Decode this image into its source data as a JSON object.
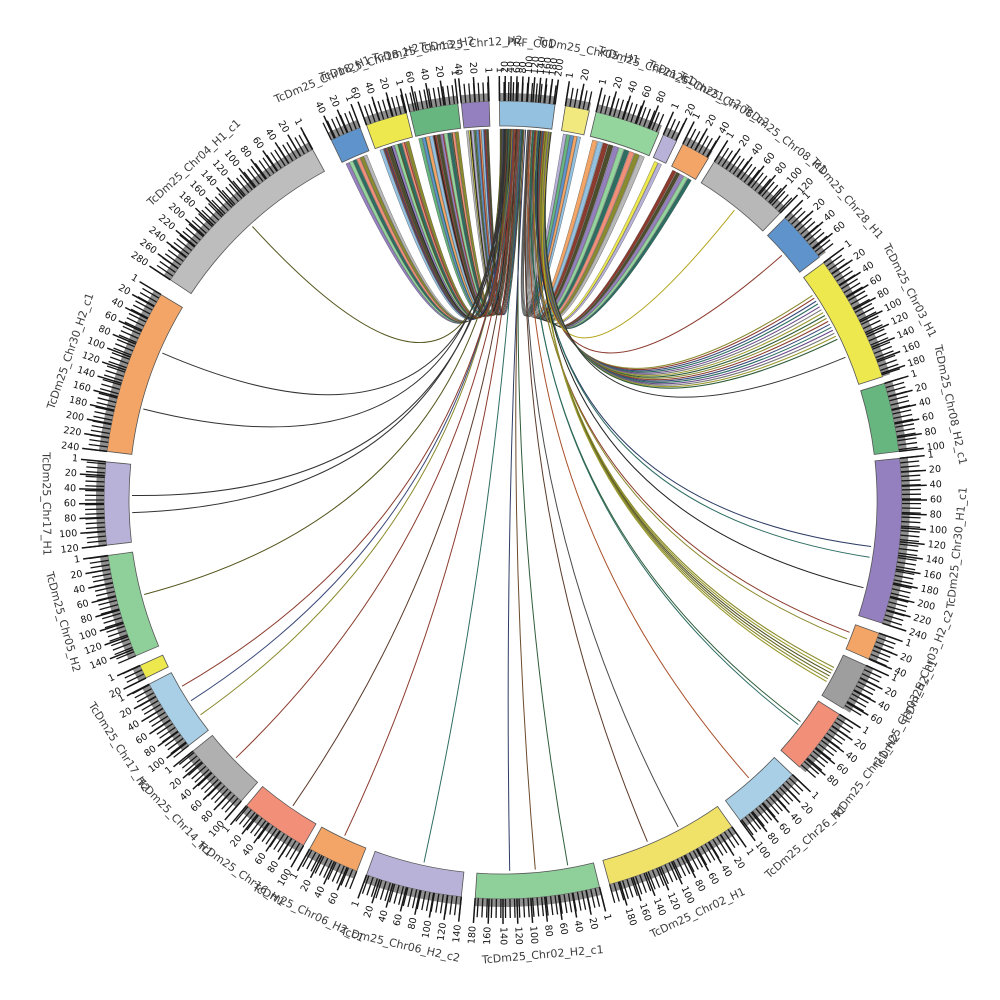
{
  "figure": {
    "background": "#ffffff",
    "description": "Circular synteny (circos-style) plot: reference sector PRF_C01 at top linked by ribbons and curves to TcDm25 chromosome haplotype sectors"
  },
  "chart_data": {
    "type": "chord",
    "reference_sector": "PRF_C01",
    "axis": {
      "minor_tick_step_deg": 0.65,
      "major_tick_step_deg": 2.0,
      "units_per_major": 20,
      "first_tick_label": "1",
      "hub_major_step_deg": 0.8
    },
    "styles": {
      "rim_color": "#8f8f8f",
      "tick_color": "#161616",
      "outline_color": "#555555",
      "name_color": "#3d3d3d",
      "tick_label_color": "#111111",
      "ribbon_outline": "rgba(35,35,35,0.55)"
    },
    "ribbon_palette": [
      "#b8b8b8",
      "#ece84e",
      "#b9b2d8",
      "#67b57f",
      "#5f93cb",
      "#f2a567",
      "#94c1e0",
      "#8c3b2e",
      "#4d4d2e",
      "#9480bf",
      "#93d59c",
      "#2e6e62",
      "#f28f79",
      "#8a8a2e"
    ],
    "sectors": [
      {
        "id": "hub",
        "label": "PRF_C01",
        "start": -0.5,
        "end": 7.5,
        "color": "#94c1e0",
        "dense": true
      },
      {
        "id": "s2",
        "label": "TcDm25_Chr05_H1",
        "start": 9,
        "end": 12.5,
        "color": "#f2e97e"
      },
      {
        "id": "s3",
        "label": "TcDm25_Chr21_c1",
        "start": 13.5,
        "end": 23,
        "color": "#93d59c"
      },
      {
        "id": "s4",
        "label": "TcDm25_Chr21_c2",
        "start": 23.7,
        "end": 25.8,
        "color": "#b9b2d8"
      },
      {
        "id": "s5",
        "label": "TcDm25_Chr08_c2",
        "start": 26.8,
        "end": 31,
        "color": "#f2a567"
      },
      {
        "id": "s6",
        "label": "TcDm25_Chr08_H1",
        "start": 32,
        "end": 44,
        "color": "#b8b8b8"
      },
      {
        "id": "s7",
        "label": "TcDm25_Chr28_H1",
        "start": 45,
        "end": 52.5,
        "color": "#5f93cb"
      },
      {
        "id": "s8",
        "label": "TcDm25_Chr03_H1",
        "start": 53.5,
        "end": 72,
        "color": "#ece84e"
      },
      {
        "id": "s9",
        "label": "TcDm25_Chr08_H2_c1",
        "start": 73,
        "end": 83,
        "color": "#67b57f"
      },
      {
        "id": "s10",
        "label": "TcDm25_Chr30_H1_c1",
        "start": 84,
        "end": 108,
        "color": "#9480bf"
      },
      {
        "id": "s11",
        "label": "TcDm25_Chr03_H2_c2",
        "start": 109.5,
        "end": 113.5,
        "color": "#f2a567"
      },
      {
        "id": "s12",
        "label": "TcDm25_Chr03_H2_c1",
        "start": 114.5,
        "end": 121.5,
        "color": "#9e9e9e"
      },
      {
        "id": "s13",
        "label": "TcDm25_Chr11_H2",
        "start": 122.5,
        "end": 132,
        "color": "#f28f79"
      },
      {
        "id": "s14",
        "label": "TcDm25_Chr26_H1",
        "start": 133.5,
        "end": 143.5,
        "color": "#a8cfe6"
      },
      {
        "id": "s15",
        "label": "TcDm25_Chr02_H1",
        "start": 145,
        "end": 164.5,
        "color": "#f0e168"
      },
      {
        "id": "s16",
        "label": "TcDm25_Chr02_H2_c1",
        "start": 166,
        "end": 184,
        "color": "#8fcf9a"
      },
      {
        "id": "s17",
        "label": "TcDm25_Chr06_H2_c2",
        "start": 186,
        "end": 200,
        "color": "#b9b2d8"
      },
      {
        "id": "s18",
        "label": "TcDm25_Chr06_H2_c1",
        "start": 201.5,
        "end": 209,
        "color": "#f2a567"
      },
      {
        "id": "s19",
        "label": "TcDm25_Chr16_H1",
        "start": 210,
        "end": 220,
        "color": "#f28f79"
      },
      {
        "id": "s20",
        "label": "TcDm25_Chr14_H1",
        "start": 221,
        "end": 231,
        "color": "#b0b0b0"
      },
      {
        "id": "s21",
        "label": "TcDm25_Chr17_H2",
        "start": 232,
        "end": 242.5,
        "color": "#a8cfe6"
      },
      {
        "id": "s22",
        "label": "",
        "start": 243.5,
        "end": 245.5,
        "color": "#ece84e"
      },
      {
        "id": "s23",
        "label": "TcDm25_Chr05_H2",
        "start": 247,
        "end": 262,
        "color": "#8fcf9a"
      },
      {
        "id": "s24",
        "label": "TcDm25_Chr17_H1",
        "start": 263.5,
        "end": 275.5,
        "color": "#b9b2d8"
      },
      {
        "id": "s25",
        "label": "TcDm25_Chr30_H2_c1",
        "start": 277,
        "end": 301,
        "color": "#f2a567"
      },
      {
        "id": "s26",
        "label": "TcDm25_Chr04_H1_c1",
        "start": 303.5,
        "end": 331.5,
        "color": "#bdbdbd"
      },
      {
        "id": "s27",
        "label": "TcDm25_Chr18_H1",
        "start": 334.5,
        "end": 339,
        "color": "#5f93cb"
      },
      {
        "id": "s28",
        "label": "TcDm25_Chr18_H2",
        "start": 340,
        "end": 346,
        "color": "#ece84e"
      },
      {
        "id": "s29",
        "label": "TcDm25_Chr13_H2",
        "start": 346.5,
        "end": 353.5,
        "color": "#67b57f"
      },
      {
        "id": "s30",
        "label": "TcDm25_Chr12_H2",
        "start": 354,
        "end": 358,
        "color": "#9480bf"
      }
    ],
    "ribbon_bundles": [
      {
        "target": "s30",
        "n": 9,
        "h": [
          0.28,
          0.46
        ],
        "t": [
          0.08,
          0.95
        ],
        "coff": 0
      },
      {
        "target": "s29",
        "n": 11,
        "h": [
          0.14,
          0.28
        ],
        "t": [
          0.05,
          0.95
        ],
        "coff": 3
      },
      {
        "target": "s28",
        "n": 8,
        "h": [
          0.05,
          0.14
        ],
        "t": [
          0.1,
          0.9
        ],
        "coff": 6
      },
      {
        "target": "s27",
        "n": 6,
        "h": [
          0.005,
          0.05
        ],
        "t": [
          0.1,
          0.9
        ],
        "coff": 9
      },
      {
        "target": "s2",
        "n": 5,
        "h": [
          0.55,
          0.62
        ],
        "t": [
          0.1,
          0.9
        ],
        "coff": 2
      },
      {
        "target": "s3",
        "n": 10,
        "h": [
          0.63,
          0.85
        ],
        "t": [
          0.05,
          0.95
        ],
        "coff": 5
      },
      {
        "target": "s4",
        "n": 2,
        "h": [
          0.855,
          0.875
        ],
        "t": [
          0.2,
          0.8
        ],
        "coff": 1
      },
      {
        "target": "s5",
        "n": 5,
        "h": [
          0.88,
          0.97
        ],
        "t": [
          0.1,
          0.9
        ],
        "coff": 7
      }
    ],
    "stroke_bundles": [
      {
        "target": "s8",
        "n": 16,
        "h": [
          0.8,
          0.99
        ],
        "t": [
          0.15,
          0.6
        ],
        "colors": [
          "#8a8a2e",
          "#8c3b2e",
          "#3b4a7a",
          "#2e6e62",
          "#6a4a8a",
          "#777777",
          "#9a9a30",
          "#2f5d3a"
        ],
        "w": 1.1
      },
      {
        "target": "s12",
        "n": 6,
        "h": [
          0.875,
          0.93
        ],
        "t": [
          0.3,
          0.72
        ],
        "colors": [
          "#8a8a2e",
          "#9a9a30",
          "#55552a",
          "#6b6b2a"
        ],
        "w": 1.1
      },
      {
        "target": "s30",
        "n": 4,
        "h": [
          0.3,
          0.44
        ],
        "t": [
          0.15,
          0.85
        ],
        "colors": [
          "#222222",
          "#4d4d2e",
          "#8c3b2e",
          "#3b4a7a"
        ],
        "w": 1.0
      },
      {
        "target": "s29",
        "n": 4,
        "h": [
          0.16,
          0.27
        ],
        "t": [
          0.1,
          0.9
        ],
        "colors": [
          "#2e6e62",
          "#222222",
          "#8c3b2e",
          "#4d4d2e"
        ],
        "w": 1.0
      },
      {
        "target": "s28",
        "n": 4,
        "h": [
          0.06,
          0.13
        ],
        "t": [
          0.15,
          0.85
        ],
        "colors": [
          "#3b4a7a",
          "#222222",
          "#55552a",
          "#8c3b2e"
        ],
        "w": 1.0
      }
    ],
    "single_links": [
      {
        "h": 0.02,
        "target": "s26",
        "t": 0.5,
        "c": "#55551e"
      },
      {
        "h": 0.08,
        "target": "s25",
        "t": 0.3,
        "c": "#333333"
      },
      {
        "h": 0.12,
        "target": "s25",
        "t": 0.68,
        "c": "#333333"
      },
      {
        "h": 0.1,
        "target": "s24",
        "t": 0.38,
        "c": "#333333"
      },
      {
        "h": 0.16,
        "target": "s24",
        "t": 0.6,
        "c": "#333333"
      },
      {
        "h": 0.2,
        "target": "s23",
        "t": 0.55,
        "c": "#55551e"
      },
      {
        "h": 0.24,
        "target": "s21",
        "t": 0.25,
        "c": "#8a8a2e"
      },
      {
        "h": 0.26,
        "target": "s21",
        "t": 0.5,
        "c": "#3b4a7a"
      },
      {
        "h": 0.28,
        "target": "s21",
        "t": 0.75,
        "c": "#8c3b2e"
      },
      {
        "h": 0.3,
        "target": "s20",
        "t": 0.5,
        "c": "#8c3b2e"
      },
      {
        "h": 0.33,
        "target": "s19",
        "t": 0.45,
        "c": "#5a3a2a"
      },
      {
        "h": 0.36,
        "target": "s18",
        "t": 0.5,
        "c": "#8c3b2e"
      },
      {
        "h": 0.4,
        "target": "s17",
        "t": 0.45,
        "c": "#2e6e62"
      },
      {
        "h": 0.44,
        "target": "s16",
        "t": 0.22,
        "c": "#2f5d3a"
      },
      {
        "h": 0.47,
        "target": "s16",
        "t": 0.5,
        "c": "#6b4a2a"
      },
      {
        "h": 0.5,
        "target": "s16",
        "t": 0.72,
        "c": "#2f3e66"
      },
      {
        "h": 0.54,
        "target": "s15",
        "t": 0.35,
        "c": "#4a4a4a"
      },
      {
        "h": 0.57,
        "target": "s15",
        "t": 0.62,
        "c": "#5a3a2a"
      },
      {
        "h": 0.6,
        "target": "s14",
        "t": 0.5,
        "c": "#a9502a"
      },
      {
        "h": 0.64,
        "target": "s13",
        "t": 0.44,
        "c": "#2f5d3a"
      },
      {
        "h": 0.655,
        "target": "s13",
        "t": 0.5,
        "c": "#2e6e62"
      },
      {
        "h": 0.7,
        "target": "s11",
        "t": 0.35,
        "c": "#8c3b2e"
      },
      {
        "h": 0.72,
        "target": "s11",
        "t": 0.62,
        "c": "#8a8a2e"
      },
      {
        "h": 0.75,
        "target": "s10",
        "t": 0.55,
        "c": "#2f3e66"
      },
      {
        "h": 0.77,
        "target": "s10",
        "t": 0.62,
        "c": "#2e6e62"
      },
      {
        "h": 0.79,
        "target": "s10",
        "t": 0.82,
        "c": "#222222"
      },
      {
        "h": 0.86,
        "target": "s7",
        "t": 0.5,
        "c": "#8c3b2e"
      },
      {
        "h": 0.99,
        "target": "s6",
        "t": 0.55,
        "c": "#b5a51e"
      },
      {
        "h": 0.995,
        "target": "s8",
        "t": 0.75,
        "c": "#333333"
      }
    ]
  }
}
